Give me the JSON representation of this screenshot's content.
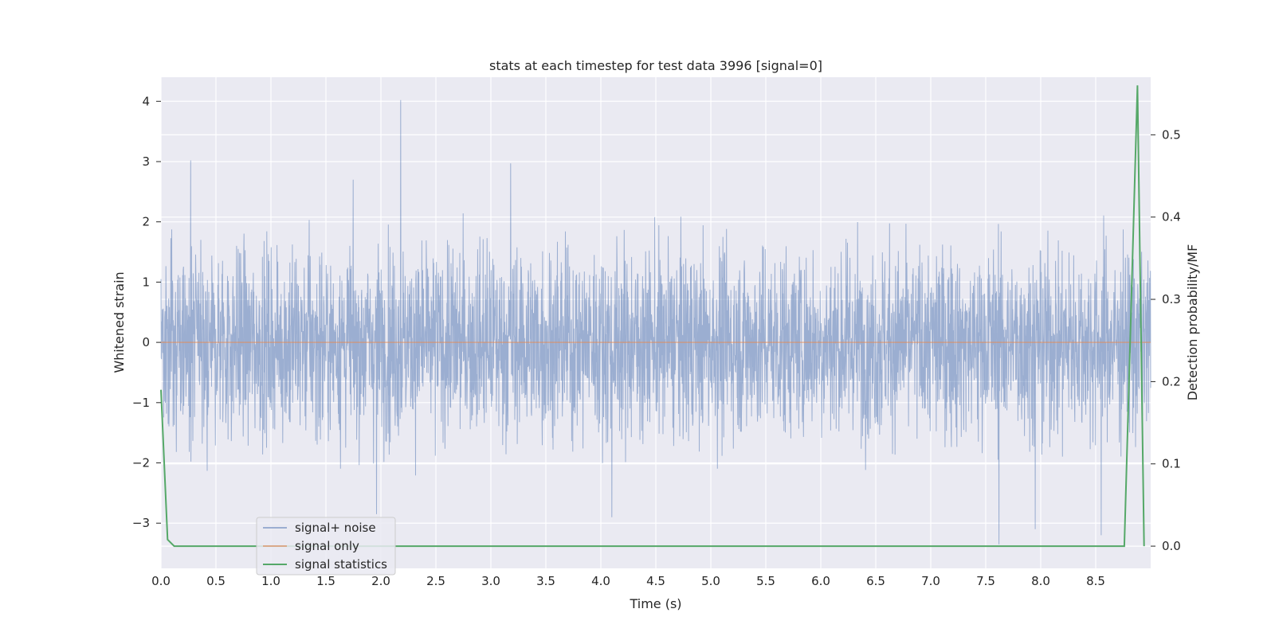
{
  "chart_data": {
    "type": "line",
    "title": "stats at each timestep for test data 3996 [signal=0]",
    "xlabel": "Time (s)",
    "ylabel_left": "Whitened strain",
    "ylabel_right": "Detection probability/MF",
    "xlim": [
      0.0,
      9.0
    ],
    "ylim_left": [
      -3.75,
      4.4
    ],
    "ylim_right": [
      -0.027,
      0.57
    ],
    "x_ticks": [
      "0.0",
      "0.5",
      "1.0",
      "1.5",
      "2.0",
      "2.5",
      "3.0",
      "3.5",
      "4.0",
      "4.5",
      "5.0",
      "5.5",
      "6.0",
      "6.5",
      "7.0",
      "7.5",
      "8.0",
      "8.5"
    ],
    "y_ticks_left": [
      "−3",
      "−2",
      "−1",
      "0",
      "1",
      "2",
      "3",
      "4"
    ],
    "y_ticks_right": [
      "0.0",
      "0.1",
      "0.2",
      "0.3",
      "0.4",
      "0.5"
    ],
    "grid": true,
    "legend_placement": "lower-left",
    "legend": [
      "signal+ noise",
      "signal only",
      "signal statistics"
    ],
    "colors": {
      "background": "#eaeaf2",
      "grid": "#ffffff",
      "noise": "#4c72b0",
      "signal_only": "#dd8452",
      "statistics": "#55a868"
    },
    "series": [
      {
        "name": "signal+ noise",
        "axis": "left",
        "description_stats": {
          "envelope_max": 4.02,
          "envelope_min": -3.35,
          "typical_amplitude": 1.2
        },
        "peaks": [
          {
            "x": 0.27,
            "y": 3.02
          },
          {
            "x": 2.18,
            "y": 4.02
          },
          {
            "x": 3.18,
            "y": 2.97
          },
          {
            "x": 1.96,
            "y": -2.85
          },
          {
            "x": 4.1,
            "y": -2.9
          },
          {
            "x": 7.62,
            "y": -3.35
          },
          {
            "x": 7.95,
            "y": -3.1
          },
          {
            "x": 8.55,
            "y": -3.2
          }
        ]
      },
      {
        "name": "signal only",
        "axis": "left",
        "x": [
          0.0,
          9.0
        ],
        "y": [
          0.0,
          0.0
        ]
      },
      {
        "name": "signal statistics",
        "axis": "right",
        "x": [
          0.0,
          0.06,
          0.12,
          0.5,
          1.0,
          2.0,
          3.0,
          4.0,
          5.0,
          6.0,
          7.0,
          8.0,
          8.7,
          8.76,
          8.88,
          8.94
        ],
        "y": [
          0.19,
          0.008,
          0.0,
          0.0,
          0.0,
          0.0,
          0.0,
          0.0,
          0.0,
          0.0,
          0.0,
          0.0,
          0.0,
          0.0,
          0.56,
          0.0
        ]
      }
    ]
  }
}
